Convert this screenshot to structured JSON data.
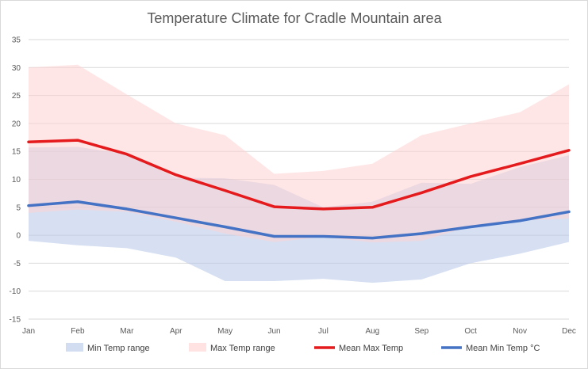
{
  "chart_data": {
    "type": "area",
    "title": "Temperature Climate for Cradle Mountain area",
    "xlabel": "",
    "ylabel": "",
    "categories": [
      "Jan",
      "Feb",
      "Mar",
      "Apr",
      "May",
      "Jun",
      "Jul",
      "Aug",
      "Sep",
      "Oct",
      "Nov",
      "Dec"
    ],
    "ylim": [
      -15,
      35
    ],
    "yticks": [
      -15,
      -10,
      -5,
      0,
      5,
      10,
      15,
      20,
      25,
      30,
      35
    ],
    "grid": true,
    "legend_position": "bottom",
    "series": [
      {
        "name": "Min Temp range",
        "kind": "band",
        "color": "#b4c7e7",
        "lower": [
          -1,
          -1.8,
          -2.3,
          -4,
          -8.2,
          -8.2,
          -7.8,
          -8.5,
          -7.9,
          -5,
          -3.3,
          -1.2
        ],
        "upper": [
          15.7,
          15.8,
          14.5,
          10.3,
          10.2,
          9,
          5,
          6,
          9.4,
          9.2,
          12.2,
          14.3
        ]
      },
      {
        "name": "Max Temp range",
        "kind": "band",
        "color": "#ffd1d1",
        "lower": [
          4,
          4.6,
          4.2,
          2.4,
          0.3,
          -1.2,
          -0.3,
          -1.3,
          -1,
          1.6,
          2.6,
          3
        ],
        "upper": [
          30,
          30.5,
          25.2,
          20,
          17.9,
          11,
          11.5,
          12.8,
          17.9,
          20,
          22,
          27
        ]
      },
      {
        "name": "Mean Max Temp",
        "kind": "line",
        "color": "#e41a1c",
        "values": [
          16.7,
          17,
          14.5,
          10.8,
          8,
          5.1,
          4.7,
          5,
          7.6,
          10.5,
          12.8,
          15.2
        ]
      },
      {
        "name": "Mean Min Temp °C",
        "kind": "line",
        "color": "#4472c4",
        "values": [
          5.3,
          6,
          4.7,
          3.1,
          1.5,
          -0.2,
          -0.2,
          -0.5,
          0.3,
          1.5,
          2.6,
          4.2
        ]
      }
    ]
  }
}
